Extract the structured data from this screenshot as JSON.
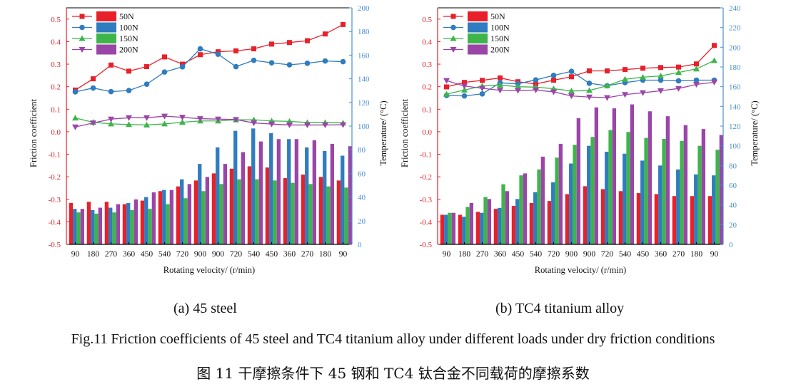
{
  "chart_data": [
    {
      "type": "bar+line",
      "subtitle": "(a) 45 steel",
      "categories": [
        "90",
        "180",
        "270",
        "360",
        "450",
        "540",
        "720",
        "900",
        "900",
        "720",
        "540",
        "450",
        "360",
        "270",
        "180",
        "90"
      ],
      "xlabel": "Rotating velocity/ (r/min)",
      "ylabel": "Friction coefficient",
      "y2label": "Temperature/ (°C)",
      "ylim": [
        -0.5,
        0.55
      ],
      "yticks": [
        -0.5,
        -0.4,
        -0.3,
        -0.2,
        -0.1,
        0.0,
        0.1,
        0.2,
        0.3,
        0.4,
        0.5
      ],
      "y2lim": [
        0,
        200
      ],
      "y2ticks": [
        0,
        20,
        40,
        60,
        80,
        100,
        120,
        140,
        160,
        180,
        200
      ],
      "legend": "top-left",
      "series": [
        {
          "name": "50N",
          "color": "#e8202a",
          "friction": [
            0.185,
            0.235,
            0.296,
            0.269,
            0.289,
            0.332,
            0.3,
            0.342,
            0.355,
            0.359,
            0.368,
            0.389,
            0.396,
            0.404,
            0.434,
            0.476
          ],
          "temperature": [
            35,
            36,
            36,
            34,
            37,
            45,
            49,
            54,
            60,
            64,
            66,
            65,
            56,
            59,
            57,
            54
          ]
        },
        {
          "name": "100N",
          "color": "#2f7cc0",
          "friction": [
            0.177,
            0.194,
            0.178,
            0.183,
            0.211,
            0.265,
            0.288,
            0.368,
            0.344,
            0.289,
            0.317,
            0.306,
            0.297,
            0.304,
            0.314,
            0.311
          ],
          "temperature": [
            30,
            29,
            31,
            35,
            40,
            46,
            55,
            68,
            82,
            96,
            98,
            94,
            89,
            82,
            79,
            75
          ]
        },
        {
          "name": "150N",
          "color": "#3db54a",
          "friction": [
            0.061,
            0.042,
            0.035,
            0.032,
            0.03,
            0.035,
            0.042,
            0.048,
            0.048,
            0.053,
            0.053,
            0.048,
            0.046,
            0.041,
            0.041,
            0.039
          ],
          "temperature": [
            27,
            26,
            27,
            29,
            30,
            34,
            39,
            45,
            51,
            55,
            55,
            54,
            52,
            51,
            49,
            48
          ]
        },
        {
          "name": "200N",
          "color": "#9b45a8",
          "friction": [
            0.021,
            0.039,
            0.056,
            0.062,
            0.062,
            0.069,
            0.064,
            0.058,
            0.056,
            0.054,
            0.039,
            0.034,
            0.03,
            0.03,
            0.03,
            0.031
          ],
          "temperature": [
            30,
            31,
            34,
            38,
            44,
            46,
            51,
            57,
            68,
            78,
            87,
            89,
            89,
            88,
            85,
            83
          ]
        }
      ]
    },
    {
      "type": "bar+line",
      "subtitle": "(b) TC4 titanium alloy",
      "categories": [
        "90",
        "180",
        "270",
        "360",
        "450",
        "540",
        "720",
        "900",
        "900",
        "720",
        "540",
        "450",
        "360",
        "270",
        "180",
        "90"
      ],
      "xlabel": "Rotating velocity/ (r/min)",
      "ylabel": "Friction coefficient",
      "y2label": "Temperature/ (°C)",
      "ylim": [
        -0.5,
        0.55
      ],
      "yticks": [
        -0.5,
        -0.4,
        -0.3,
        -0.2,
        -0.1,
        0.0,
        0.1,
        0.2,
        0.3,
        0.4,
        0.5
      ],
      "y2lim": [
        0,
        240
      ],
      "y2ticks": [
        0,
        20,
        40,
        60,
        80,
        100,
        120,
        140,
        160,
        180,
        200,
        220,
        240
      ],
      "legend": "top-left",
      "series": [
        {
          "name": "50N",
          "color": "#e8202a",
          "friction": [
            0.199,
            0.219,
            0.228,
            0.239,
            0.222,
            0.212,
            0.229,
            0.244,
            0.27,
            0.27,
            0.276,
            0.282,
            0.285,
            0.287,
            0.301,
            0.383
          ],
          "temperature": [
            30,
            30,
            33,
            36,
            39,
            42,
            44,
            51,
            59,
            56,
            54,
            52,
            51,
            49,
            49,
            49
          ]
        },
        {
          "name": "100N",
          "color": "#2f7cc0",
          "friction": [
            0.161,
            0.159,
            0.168,
            0.217,
            0.213,
            0.23,
            0.25,
            0.268,
            0.215,
            0.204,
            0.218,
            0.229,
            0.229,
            0.226,
            0.229,
            0.229
          ],
          "temperature": [
            30,
            28,
            32,
            37,
            46,
            53,
            63,
            82,
            100,
            94,
            92,
            85,
            80,
            76,
            71,
            70
          ]
        },
        {
          "name": "150N",
          "color": "#3db54a",
          "friction": [
            0.167,
            0.185,
            0.203,
            0.207,
            0.2,
            0.198,
            0.191,
            0.181,
            0.183,
            0.204,
            0.233,
            0.242,
            0.248,
            0.263,
            0.279,
            0.316
          ],
          "temperature": [
            32,
            38,
            48,
            61,
            70,
            76,
            88,
            101,
            109,
            116,
            114,
            108,
            107,
            105,
            100,
            96
          ]
        },
        {
          "name": "200N",
          "color": "#9b45a8",
          "friction": [
            0.227,
            0.203,
            0.193,
            0.184,
            0.183,
            0.185,
            0.177,
            0.159,
            0.154,
            0.151,
            0.165,
            0.173,
            0.182,
            0.192,
            0.21,
            0.22
          ],
          "temperature": [
            32,
            42,
            46,
            54,
            72,
            89,
            102,
            128,
            139,
            138,
            142,
            135,
            130,
            121,
            117,
            111
          ]
        }
      ]
    }
  ],
  "figure": {
    "caption_en": "Fig.11 Friction coefficients of 45 steel and TC4 titanium alloy under different loads under dry friction conditions",
    "caption_zh": "图 11  干摩擦条件下 45 钢和 TC4 钛合金不同载荷的摩擦系数"
  },
  "colors": {
    "left_axis": "#e8202a",
    "right_axis": "#4a90d0"
  }
}
